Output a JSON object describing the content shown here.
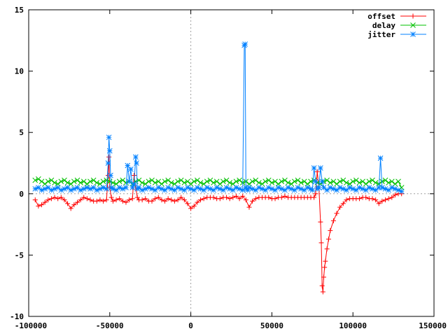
{
  "chart_data": {
    "type": "line",
    "title": "",
    "xlabel": "",
    "ylabel": "",
    "xlim": [
      -100000,
      150000
    ],
    "ylim": [
      -10,
      15
    ],
    "x_ticks": [
      -100000,
      -50000,
      0,
      50000,
      100000,
      150000
    ],
    "x_tick_labels": [
      "-100000",
      "-50000",
      "0",
      "50000",
      "100000",
      "150000"
    ],
    "y_ticks": [
      -10,
      -5,
      0,
      5,
      10,
      15
    ],
    "y_tick_labels": [
      "-10",
      "-5",
      "0",
      "5",
      "10",
      "15"
    ],
    "grid": false,
    "zero_axes": "dotted",
    "legend_position": "top-right",
    "series": [
      {
        "name": "offset",
        "color": "#ff0000",
        "marker": "plus",
        "x": [
          -96000,
          -94000,
          -92000,
          -90000,
          -88000,
          -86000,
          -84000,
          -82000,
          -80000,
          -78000,
          -76000,
          -74000,
          -72000,
          -70000,
          -68000,
          -66000,
          -64000,
          -62000,
          -60000,
          -58000,
          -56000,
          -54000,
          -52000,
          -51000,
          -50500,
          -50000,
          -49000,
          -48000,
          -46000,
          -44000,
          -42000,
          -40000,
          -38000,
          -36000,
          -35000,
          -34000,
          -33000,
          -32000,
          -30000,
          -28000,
          -26000,
          -24000,
          -22000,
          -20000,
          -18000,
          -16000,
          -14000,
          -12000,
          -10000,
          -8000,
          -6000,
          -4000,
          -2000,
          0,
          2000,
          4000,
          6000,
          8000,
          10000,
          12000,
          14000,
          16000,
          18000,
          20000,
          22000,
          24000,
          26000,
          28000,
          30000,
          32000,
          34000,
          36000,
          38000,
          40000,
          42000,
          44000,
          46000,
          48000,
          50000,
          52000,
          54000,
          56000,
          58000,
          60000,
          62000,
          64000,
          66000,
          68000,
          70000,
          72000,
          74000,
          76000,
          77000,
          78000,
          79000,
          80000,
          80500,
          81000,
          81500,
          82000,
          82500,
          83000,
          84000,
          85000,
          86000,
          88000,
          90000,
          92000,
          94000,
          96000,
          98000,
          100000,
          102000,
          104000,
          106000,
          108000,
          110000,
          112000,
          114000,
          116000,
          118000,
          120000,
          122000,
          124000,
          126000,
          128000,
          130000
        ],
        "y": [
          -0.5,
          -1.0,
          -0.9,
          -0.7,
          -0.5,
          -0.4,
          -0.3,
          -0.4,
          -0.3,
          -0.5,
          -0.8,
          -1.2,
          -0.9,
          -0.7,
          -0.5,
          -0.3,
          -0.4,
          -0.5,
          -0.6,
          -0.6,
          -0.5,
          -0.6,
          -0.5,
          1.5,
          3.0,
          0.5,
          -0.3,
          -0.6,
          -0.5,
          -0.4,
          -0.6,
          -0.7,
          -0.5,
          -0.4,
          1.5,
          0.5,
          -0.3,
          -0.5,
          -0.5,
          -0.4,
          -0.6,
          -0.6,
          -0.4,
          -0.3,
          -0.5,
          -0.6,
          -0.4,
          -0.5,
          -0.6,
          -0.5,
          -0.3,
          -0.5,
          -0.8,
          -1.2,
          -1.0,
          -0.7,
          -0.5,
          -0.4,
          -0.3,
          -0.3,
          -0.3,
          -0.4,
          -0.4,
          -0.3,
          -0.3,
          -0.4,
          -0.3,
          -0.2,
          -0.4,
          -0.2,
          -0.5,
          -1.1,
          -0.6,
          -0.4,
          -0.3,
          -0.3,
          -0.3,
          -0.3,
          -0.4,
          -0.4,
          -0.3,
          -0.3,
          -0.2,
          -0.3,
          -0.3,
          -0.3,
          -0.3,
          -0.3,
          -0.3,
          -0.3,
          -0.3,
          -0.3,
          0.0,
          1.8,
          0.5,
          -2.3,
          -4.0,
          -7.5,
          -8.0,
          -6.8,
          -6.0,
          -5.5,
          -4.5,
          -3.7,
          -3.0,
          -2.2,
          -1.6,
          -1.1,
          -0.8,
          -0.5,
          -0.4,
          -0.4,
          -0.4,
          -0.4,
          -0.3,
          -0.3,
          -0.4,
          -0.4,
          -0.5,
          -0.8,
          -0.6,
          -0.5,
          -0.4,
          -0.3,
          -0.1,
          0.0,
          0.0
        ]
      },
      {
        "name": "delay",
        "color": "#00c000",
        "marker": "cross",
        "x": [
          -96000,
          -94000,
          -92000,
          -90000,
          -88000,
          -86000,
          -84000,
          -82000,
          -80000,
          -78000,
          -76000,
          -74000,
          -72000,
          -70000,
          -68000,
          -66000,
          -64000,
          -62000,
          -60000,
          -58000,
          -56000,
          -54000,
          -52000,
          -50000,
          -48000,
          -46000,
          -44000,
          -42000,
          -40000,
          -38000,
          -36000,
          -34000,
          -32000,
          -30000,
          -28000,
          -26000,
          -24000,
          -22000,
          -20000,
          -18000,
          -16000,
          -14000,
          -12000,
          -10000,
          -8000,
          -6000,
          -4000,
          -2000,
          0,
          2000,
          4000,
          6000,
          8000,
          10000,
          12000,
          14000,
          16000,
          18000,
          20000,
          22000,
          24000,
          26000,
          28000,
          30000,
          32000,
          34000,
          36000,
          38000,
          40000,
          42000,
          44000,
          46000,
          48000,
          50000,
          52000,
          54000,
          56000,
          58000,
          60000,
          62000,
          64000,
          66000,
          68000,
          70000,
          72000,
          74000,
          76000,
          78000,
          80000,
          82000,
          84000,
          86000,
          88000,
          90000,
          92000,
          94000,
          96000,
          98000,
          100000,
          102000,
          104000,
          106000,
          108000,
          110000,
          112000,
          114000,
          116000,
          118000,
          120000,
          122000,
          124000,
          126000,
          128000,
          130000
        ],
        "y": [
          1.1,
          1.2,
          1.0,
          0.8,
          1.0,
          1.1,
          0.9,
          0.8,
          1.0,
          1.1,
          0.9,
          0.8,
          1.0,
          1.1,
          0.9,
          1.0,
          0.8,
          1.0,
          1.1,
          0.9,
          0.8,
          1.0,
          1.1,
          1.0,
          0.9,
          0.8,
          1.0,
          1.1,
          0.9,
          1.0,
          0.8,
          1.0,
          1.1,
          0.9,
          0.8,
          1.0,
          1.1,
          0.9,
          1.0,
          0.8,
          1.0,
          1.1,
          0.9,
          0.8,
          1.0,
          1.1,
          0.9,
          1.0,
          0.8,
          1.0,
          1.1,
          0.9,
          0.8,
          1.0,
          1.1,
          0.9,
          1.0,
          0.8,
          1.0,
          1.1,
          0.9,
          0.8,
          1.0,
          1.1,
          0.9,
          1.0,
          0.8,
          1.0,
          1.1,
          0.9,
          0.8,
          1.0,
          1.1,
          0.9,
          1.0,
          0.8,
          1.0,
          1.1,
          0.9,
          0.8,
          1.0,
          1.1,
          0.9,
          1.0,
          0.8,
          1.0,
          1.1,
          0.9,
          0.8,
          1.0,
          1.1,
          0.9,
          1.0,
          0.8,
          1.0,
          1.1,
          0.9,
          0.8,
          1.0,
          1.1,
          0.9,
          1.0,
          0.8,
          1.0,
          1.1,
          0.9,
          0.8,
          1.0,
          1.1,
          0.9,
          1.0,
          0.8,
          1.0,
          0.5
        ]
      },
      {
        "name": "jitter",
        "color": "#0080ff",
        "marker": "star",
        "x": [
          -96000,
          -94000,
          -92000,
          -90000,
          -88000,
          -86000,
          -84000,
          -82000,
          -80000,
          -78000,
          -76000,
          -74000,
          -72000,
          -70000,
          -68000,
          -66000,
          -64000,
          -62000,
          -60000,
          -58000,
          -56000,
          -54000,
          -52000,
          -51000,
          -50500,
          -50000,
          -49500,
          -49000,
          -48000,
          -46000,
          -44000,
          -42000,
          -40000,
          -39000,
          -38000,
          -37000,
          -36000,
          -35000,
          -34000,
          -33500,
          -33000,
          -32000,
          -30000,
          -28000,
          -26000,
          -24000,
          -22000,
          -20000,
          -18000,
          -16000,
          -14000,
          -12000,
          -10000,
          -8000,
          -6000,
          -4000,
          -2000,
          0,
          2000,
          4000,
          6000,
          8000,
          10000,
          12000,
          14000,
          16000,
          18000,
          20000,
          22000,
          24000,
          26000,
          28000,
          30000,
          32000,
          33000,
          33500,
          34000,
          34500,
          35000,
          36000,
          38000,
          40000,
          42000,
          44000,
          46000,
          48000,
          50000,
          52000,
          54000,
          56000,
          58000,
          60000,
          62000,
          64000,
          66000,
          68000,
          70000,
          72000,
          74000,
          75000,
          76000,
          77000,
          78000,
          79000,
          80000,
          81000,
          82000,
          84000,
          86000,
          88000,
          90000,
          92000,
          94000,
          96000,
          98000,
          100000,
          102000,
          104000,
          106000,
          108000,
          110000,
          112000,
          114000,
          116000,
          117000,
          118000,
          120000,
          122000,
          124000,
          126000,
          128000,
          130000
        ],
        "y": [
          0.4,
          0.5,
          0.3,
          0.4,
          0.5,
          0.3,
          0.4,
          0.5,
          0.3,
          0.4,
          0.5,
          0.3,
          0.4,
          0.5,
          0.3,
          0.4,
          0.5,
          0.4,
          0.5,
          0.3,
          0.4,
          0.5,
          0.4,
          2.5,
          4.6,
          3.5,
          1.5,
          0.5,
          0.4,
          0.3,
          0.5,
          0.4,
          0.5,
          2.3,
          1.0,
          2.0,
          0.5,
          0.8,
          3.0,
          2.5,
          0.4,
          0.5,
          0.3,
          0.4,
          0.5,
          0.4,
          0.3,
          0.5,
          0.4,
          0.3,
          0.5,
          0.4,
          0.3,
          0.5,
          0.4,
          0.3,
          0.5,
          0.4,
          0.3,
          0.5,
          0.4,
          0.3,
          0.5,
          0.4,
          0.3,
          0.5,
          0.4,
          0.3,
          0.5,
          0.4,
          0.3,
          0.5,
          0.4,
          0.3,
          12.1,
          12.2,
          0.5,
          0.4,
          0.3,
          0.5,
          0.4,
          0.3,
          0.5,
          0.4,
          0.3,
          0.5,
          0.4,
          0.3,
          0.5,
          0.4,
          0.3,
          0.5,
          0.4,
          0.3,
          0.5,
          0.4,
          0.3,
          0.5,
          0.4,
          0.3,
          2.1,
          1.0,
          0.4,
          0.5,
          2.1,
          1.0,
          0.5,
          0.3,
          0.5,
          0.4,
          0.3,
          0.5,
          0.4,
          0.3,
          0.5,
          0.4,
          0.3,
          0.5,
          0.4,
          0.3,
          0.5,
          0.4,
          0.3,
          0.5,
          2.9,
          0.5,
          0.4,
          0.3,
          0.5,
          0.4,
          0.3,
          0.2
        ]
      }
    ]
  }
}
